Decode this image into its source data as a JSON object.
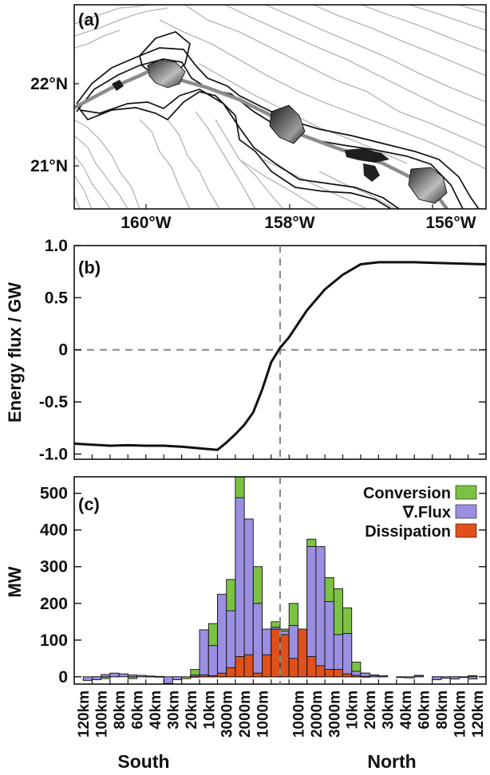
{
  "panel_a": {
    "label": "(a)",
    "ytick_labels": [
      "22°N",
      "21°N"
    ],
    "xtick_labels": [
      "160°W",
      "158°W",
      "156°W"
    ],
    "colors": {
      "contour_gray": "#b4b4b4",
      "contour_black": "#111111",
      "transect": "#8c8c8c",
      "island_dark": "#1a1a1a",
      "island_light": "#bdbdbd"
    }
  },
  "chart_data": [
    {
      "type": "line",
      "panel_label": "(b)",
      "ylabel": "Energy flux / GW",
      "ylim": [
        -1.05,
        1.0
      ],
      "yticks": [
        -1.0,
        -0.5,
        0,
        0.5,
        1.0
      ],
      "ytick_labels": [
        "-1.0",
        "-0.5",
        "0",
        "0.5",
        "1.0"
      ],
      "x_index_range": [
        0,
        23
      ],
      "series": [
        {
          "x": [
            0,
            1,
            2,
            3,
            4,
            5,
            6,
            7,
            8,
            8.5,
            9,
            9.5,
            10,
            10.5,
            11,
            11.5,
            12,
            12.5,
            13,
            14,
            15,
            16,
            17,
            18,
            19,
            20,
            21,
            22,
            23
          ],
          "values": [
            -0.9,
            -0.91,
            -0.92,
            -0.915,
            -0.92,
            -0.92,
            -0.93,
            -0.945,
            -0.96,
            -0.89,
            -0.81,
            -0.72,
            -0.6,
            -0.38,
            -0.12,
            0.02,
            0.12,
            0.25,
            0.38,
            0.58,
            0.72,
            0.82,
            0.84,
            0.84,
            0.84,
            0.835,
            0.83,
            0.825,
            0.82
          ]
        }
      ],
      "reference_lines": {
        "vertical_x": 11.5,
        "horizontal_y": 0
      },
      "colors": {
        "line": "#111111",
        "reference": "#888888"
      }
    },
    {
      "type": "bar",
      "panel_label": "(c)",
      "ylabel": "MW",
      "ylim": [
        -20,
        545
      ],
      "yticks": [
        0,
        100,
        200,
        300,
        400,
        500
      ],
      "ytick_labels": [
        "0",
        "100",
        "200",
        "300",
        "400",
        "500"
      ],
      "categories": [
        "120km",
        "100km",
        "80km",
        "60km",
        "40km",
        "30km",
        "20km",
        "10km",
        "3000m",
        "2000m",
        "1000m",
        "",
        "1000m",
        "2000m",
        "3000m",
        "10km",
        "20km",
        "30km",
        "40km",
        "60km",
        "80km",
        "100km",
        "120km"
      ],
      "category_positions": [
        0.5,
        1.5,
        2.5,
        3.5,
        4.5,
        5.5,
        6.5,
        7.5,
        8.5,
        9.5,
        10.5,
        11.5,
        12.5,
        13.5,
        14.5,
        15.5,
        16.5,
        17.5,
        18.5,
        19.5,
        20.5,
        21.5,
        22.5
      ],
      "bars": [
        {
          "x": 0.5,
          "conversion": [
            0,
            0
          ],
          "divflux": [
            0,
            -10
          ],
          "dissipation": [
            0,
            0
          ]
        },
        {
          "x": 1.5,
          "conversion": [
            -3,
            -5
          ],
          "divflux": [
            -8,
            6
          ],
          "dissipation": [
            0,
            0
          ]
        },
        {
          "x": 2.5,
          "conversion": [
            4,
            0
          ],
          "divflux": [
            10,
            8
          ],
          "dissipation": [
            0,
            0
          ]
        },
        {
          "x": 3.5,
          "conversion": [
            -5,
            3
          ],
          "divflux": [
            5,
            4
          ],
          "dissipation": [
            0,
            0
          ]
        },
        {
          "x": 4.5,
          "conversion": [
            2,
            0
          ],
          "divflux": [
            2,
            1
          ],
          "dissipation": [
            0,
            0
          ]
        },
        {
          "x": 5.5,
          "conversion": [
            0,
            0
          ],
          "divflux": [
            -18,
            -8
          ],
          "dissipation": [
            0,
            0
          ]
        },
        {
          "x": 6.5,
          "conversion": [
            -5,
            20
          ],
          "divflux": [
            0,
            5
          ],
          "dissipation": [
            0,
            1
          ]
        },
        {
          "x": 7.5,
          "conversion": [
            5,
            145
          ],
          "divflux": [
            128,
            85
          ],
          "dissipation": [
            5,
            3
          ]
        },
        {
          "x": 8.5,
          "conversion": [
            220,
            265
          ],
          "divflux": [
            225,
            180
          ],
          "dissipation": [
            10,
            25
          ]
        },
        {
          "x": 9.5,
          "conversion": [
            545,
            300
          ],
          "divflux": [
            488,
            430
          ],
          "dissipation": [
            55,
            60
          ]
        },
        {
          "x": 10.5,
          "conversion": [
            300,
            45
          ],
          "divflux": [
            200,
            130
          ],
          "dissipation": [
            10,
            60
          ]
        },
        {
          "x": 11.5,
          "conversion": [
            150,
            130
          ],
          "divflux": [
            135,
            125
          ],
          "dissipation": [
            130,
            115
          ]
        },
        {
          "x": 12.5,
          "conversion": [
            200,
            70
          ],
          "divflux": [
            140,
            125
          ],
          "dissipation": [
            50,
            130
          ]
        },
        {
          "x": 13.5,
          "conversion": [
            375,
            320
          ],
          "divflux": [
            355,
            355
          ],
          "dissipation": [
            55,
            30
          ]
        },
        {
          "x": 14.5,
          "conversion": [
            270,
            240
          ],
          "divflux": [
            205,
            115
          ],
          "dissipation": [
            20,
            20
          ]
        },
        {
          "x": 15.5,
          "conversion": [
            188,
            40
          ],
          "divflux": [
            118,
            15
          ],
          "dissipation": [
            8,
            4
          ]
        },
        {
          "x": 16.5,
          "conversion": [
            10,
            5
          ],
          "divflux": [
            10,
            4
          ],
          "dissipation": [
            1,
            0
          ]
        },
        {
          "x": 17.5,
          "conversion": [
            2,
            0
          ],
          "divflux": [
            3,
            0
          ],
          "dissipation": [
            0,
            0
          ]
        },
        {
          "x": 18.5,
          "conversion": [
            0,
            0
          ],
          "divflux": [
            -2,
            -3
          ],
          "dissipation": [
            0,
            0
          ]
        },
        {
          "x": 19.5,
          "conversion": [
            4,
            0
          ],
          "divflux": [
            3,
            0
          ],
          "dissipation": [
            0,
            0
          ]
        },
        {
          "x": 20.5,
          "conversion": [
            -3,
            0
          ],
          "divflux": [
            -8,
            -4
          ],
          "dissipation": [
            0,
            0
          ]
        },
        {
          "x": 21.5,
          "conversion": [
            -2,
            0
          ],
          "divflux": [
            -6,
            -2
          ],
          "dissipation": [
            0,
            0
          ]
        },
        {
          "x": 22.5,
          "conversion": [
            3,
            0
          ],
          "divflux": [
            -6,
            0
          ],
          "dissipation": [
            0,
            0
          ]
        }
      ],
      "legend": {
        "placement": "top-right",
        "entries": [
          {
            "name": "Conversion",
            "color": "#7cc242"
          },
          {
            "name": "∇.Flux",
            "color": "#9a8fe0"
          },
          {
            "name": "Dissipation",
            "color": "#e0501a"
          }
        ]
      },
      "reference_lines": {
        "vertical_x": 11.5
      },
      "xgroup_labels": [
        "South",
        "North"
      ]
    }
  ]
}
